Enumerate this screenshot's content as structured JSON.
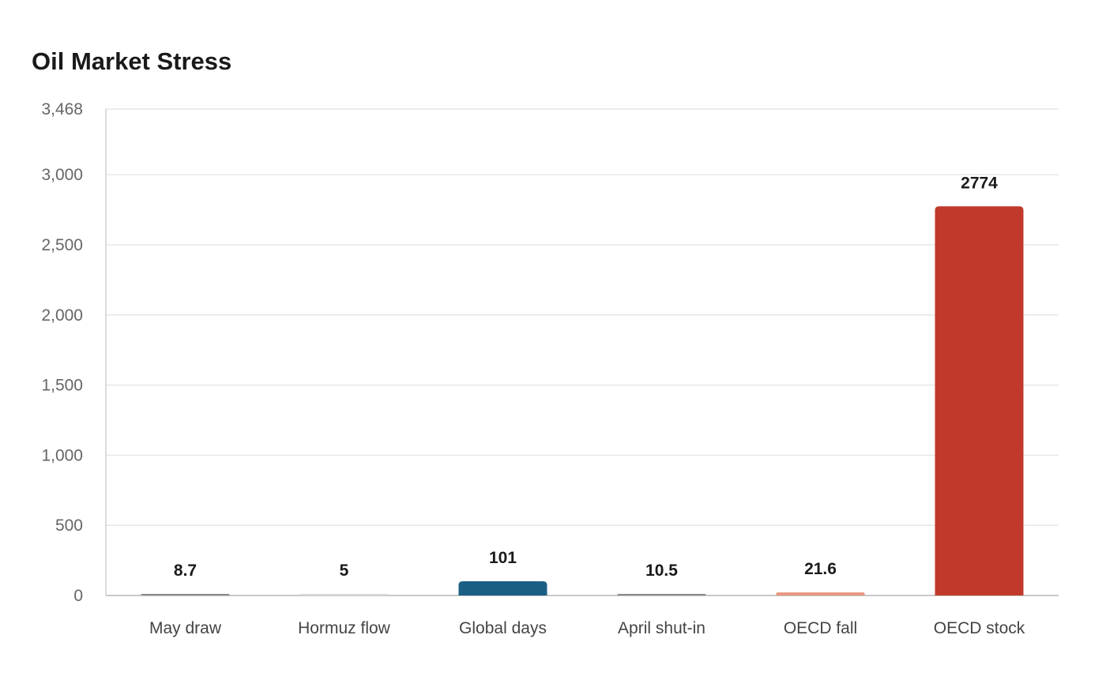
{
  "chart_data": {
    "type": "bar",
    "title": "Oil Market Stress",
    "xlabel": "",
    "ylabel": "",
    "categories": [
      "May draw",
      "Hormuz flow",
      "Global days",
      "April shut-in",
      "OECD fall",
      "OECD stock"
    ],
    "values": [
      8.7,
      5,
      101,
      10.5,
      21.6,
      2774
    ],
    "data_labels": [
      "8.7",
      "5",
      "101",
      "10.5",
      "21.6",
      "2774"
    ],
    "colors": [
      "#8a8a8a",
      "#d9d9d9",
      "#1b5e84",
      "#8a8a8a",
      "#e8967f",
      "#c0392b"
    ],
    "ylim": [
      0,
      3468
    ],
    "yticks": [
      0,
      500,
      1000,
      1500,
      2000,
      2500,
      3000,
      3468
    ],
    "ytick_labels": [
      "0",
      "500",
      "1,000",
      "1,500",
      "2,000",
      "2,500",
      "3,000",
      "3,468"
    ],
    "grid": true,
    "legend": "none"
  }
}
